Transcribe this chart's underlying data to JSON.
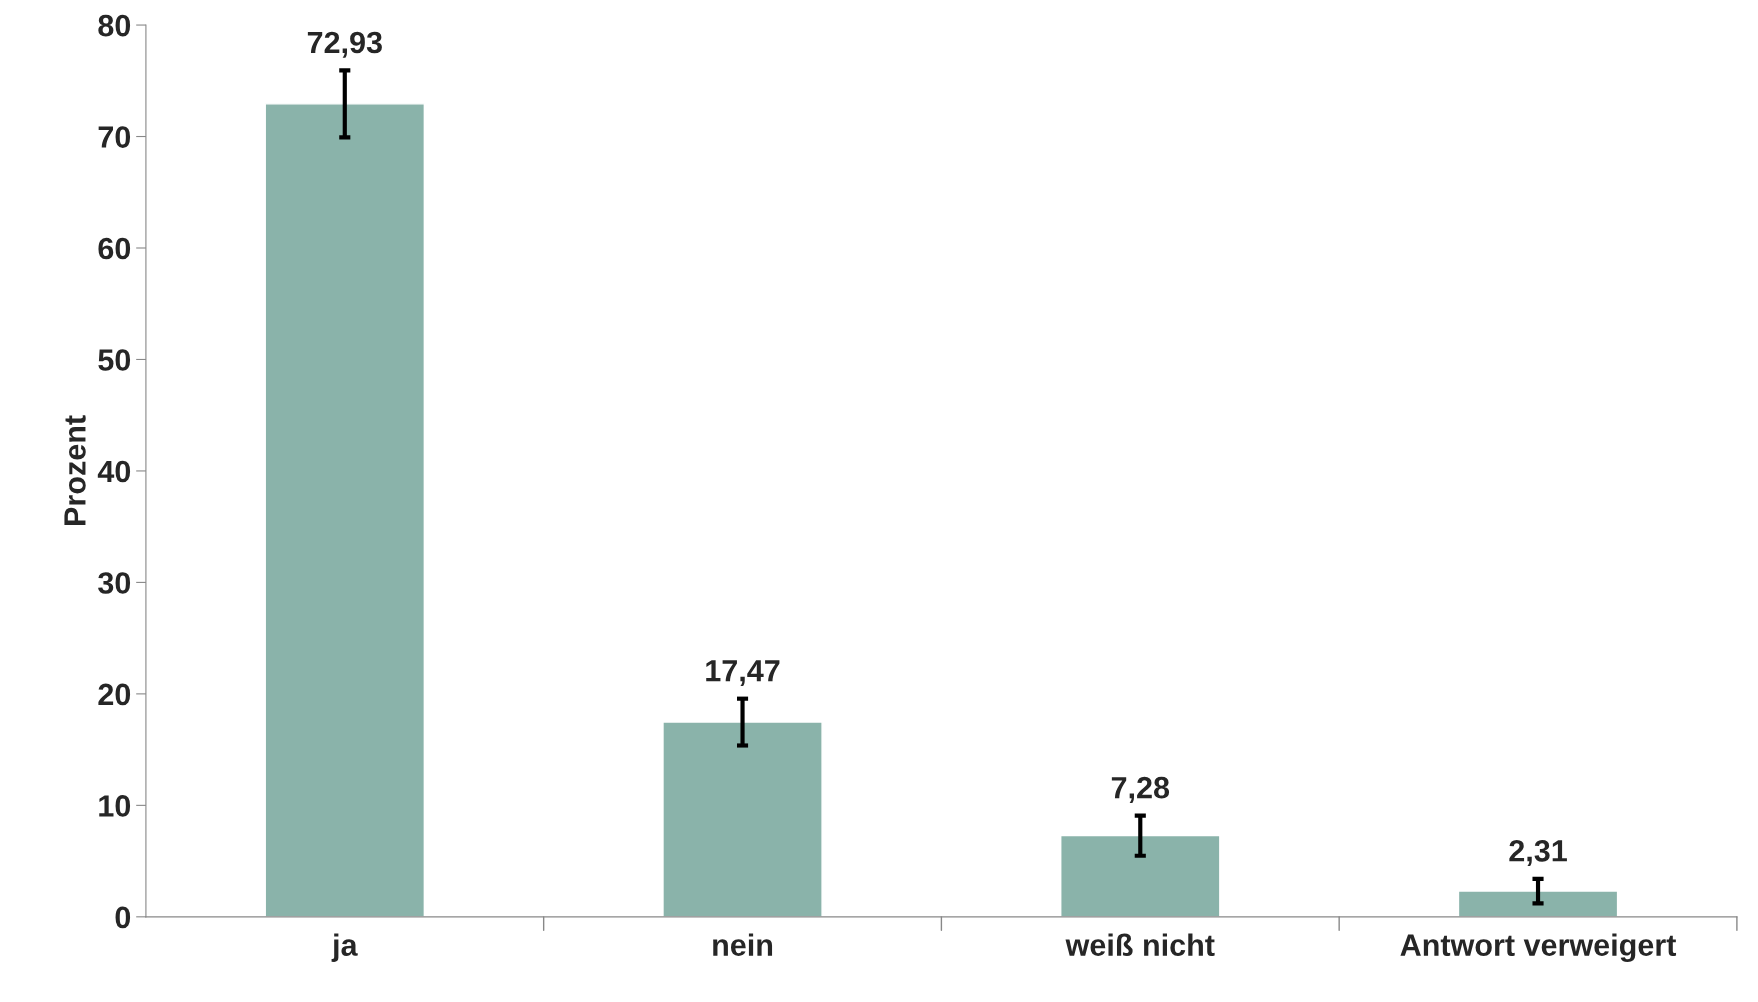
{
  "chart_data": {
    "type": "bar",
    "ylabel": "Prozent",
    "categories": [
      "ja",
      "nein",
      "weiß nicht",
      "Antwort verweigert"
    ],
    "values": [
      72.93,
      17.47,
      7.28,
      2.31
    ],
    "value_labels": [
      "72,93",
      "17,47",
      "7,28",
      "2,31"
    ],
    "errors": [
      3.0,
      2.1,
      1.8,
      1.1
    ],
    "color": "#8ab3aa",
    "ylim": [
      0,
      80
    ],
    "yticks": [
      0,
      10,
      20,
      30,
      40,
      50,
      60,
      70,
      80
    ],
    "grid": false,
    "legend": false
  }
}
